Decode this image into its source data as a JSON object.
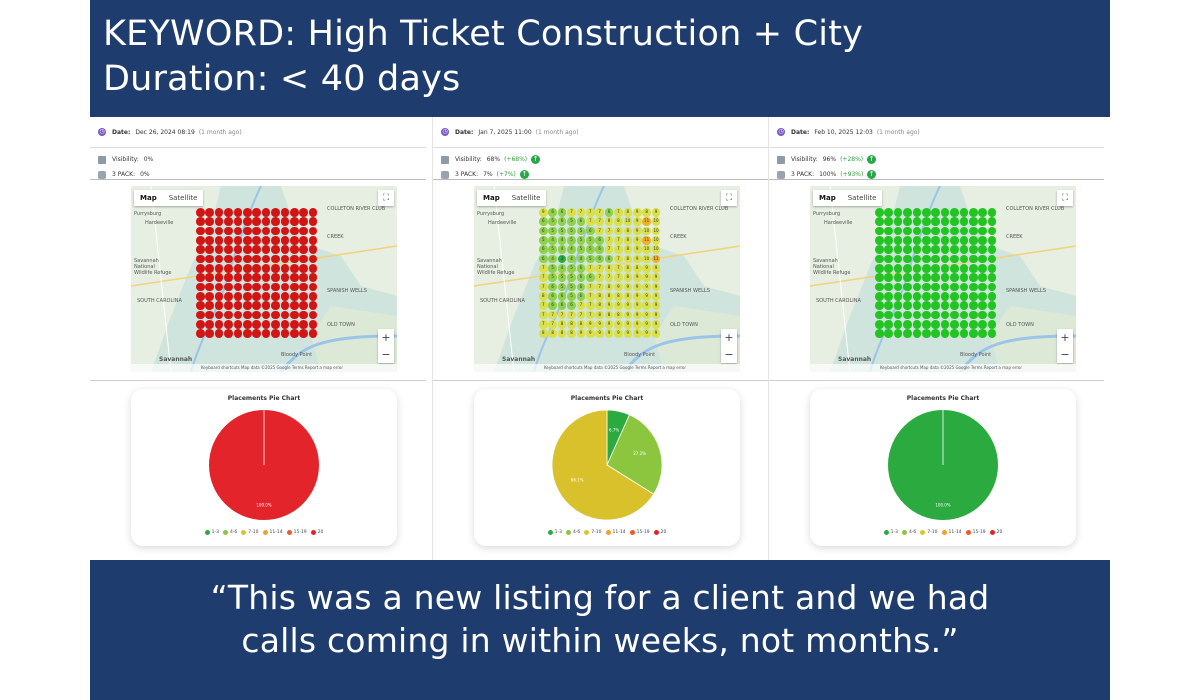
{
  "header": {
    "line1": "KEYWORD: High Ticket Construction + City",
    "line2": "Duration: < 40 days"
  },
  "footer": {
    "line1": "“This was a new listing for a client and we had",
    "line2": "calls coming in within weeks, not months.”"
  },
  "labels": {
    "date": "Date:",
    "visibility": "Visibility:",
    "pack": "3 PACK:",
    "map_tab": "Map",
    "satellite_tab": "Satellite",
    "zoom_in": "+",
    "zoom_out": "−",
    "pie_title": "Placements Pie Chart",
    "map_footer": "Keyboard shortcuts   Map data ©2025 Google   Terms   Report a map error"
  },
  "map_labels": [
    "Purrysburg",
    "Hardeeville",
    "Savannah National Wildlife Refuge",
    "SOUTH CAROLINA",
    "Savannah",
    "COLLETON RIVER CLUB",
    "CREEK",
    "SPANISH WELLS",
    "OLD TOWN",
    "Bloody Point"
  ],
  "legend": [
    {
      "label": "1-3",
      "color": "#2bab3f"
    },
    {
      "label": "4-6",
      "color": "#8cc63f"
    },
    {
      "label": "7-10",
      "color": "#d7c62a"
    },
    {
      "label": "11-14",
      "color": "#f0a22a"
    },
    {
      "label": "15-19",
      "color": "#ee5a2a"
    },
    {
      "label": "20",
      "color": "#e3242b"
    }
  ],
  "panels": [
    {
      "date": "Dec 26, 2024 08:19",
      "date_ago": "(1 month ago)",
      "visibility": "0%",
      "visibility_change": "",
      "pack": "0%",
      "pack_change": "",
      "grid_color": "#d21414",
      "grid_text": "",
      "pie_label": "100.0%",
      "chart_data": {
        "type": "pie",
        "title": "Placements Pie Chart",
        "categories": [
          "1-3",
          "4-6",
          "7-10",
          "11-14",
          "15-19",
          "20"
        ],
        "values": [
          0,
          0,
          0,
          0,
          0,
          100.0
        ]
      }
    },
    {
      "date": "Jan 7, 2025 11:00",
      "date_ago": "(1 month ago)",
      "visibility": "68%",
      "visibility_change": "(+68%)",
      "pack": "7%",
      "pack_change": "(+7%)",
      "grid_color": "mixed",
      "grid_text": "numbers",
      "pie_label": "",
      "chart_data": {
        "type": "pie",
        "title": "Placements Pie Chart",
        "categories": [
          "1-3",
          "4-6",
          "7-10",
          "11-14",
          "15-19",
          "20"
        ],
        "values": [
          6.7,
          27.2,
          66.1,
          0,
          0,
          0
        ],
        "labels": [
          "6.7%",
          "27.2%",
          "66.1%"
        ]
      }
    },
    {
      "date": "Feb 10, 2025 12:03",
      "date_ago": "(1 month ago)",
      "visibility": "96%",
      "visibility_change": "(+28%)",
      "pack": "100%",
      "pack_change": "(+93%)",
      "grid_color": "#22c422",
      "grid_text": "",
      "pie_label": "100.0%",
      "chart_data": {
        "type": "pie",
        "title": "Placements Pie Chart",
        "categories": [
          "1-3",
          "4-6",
          "7-10",
          "11-14",
          "15-19",
          "20"
        ],
        "values": [
          100.0,
          0,
          0,
          0,
          0,
          0
        ]
      }
    }
  ]
}
